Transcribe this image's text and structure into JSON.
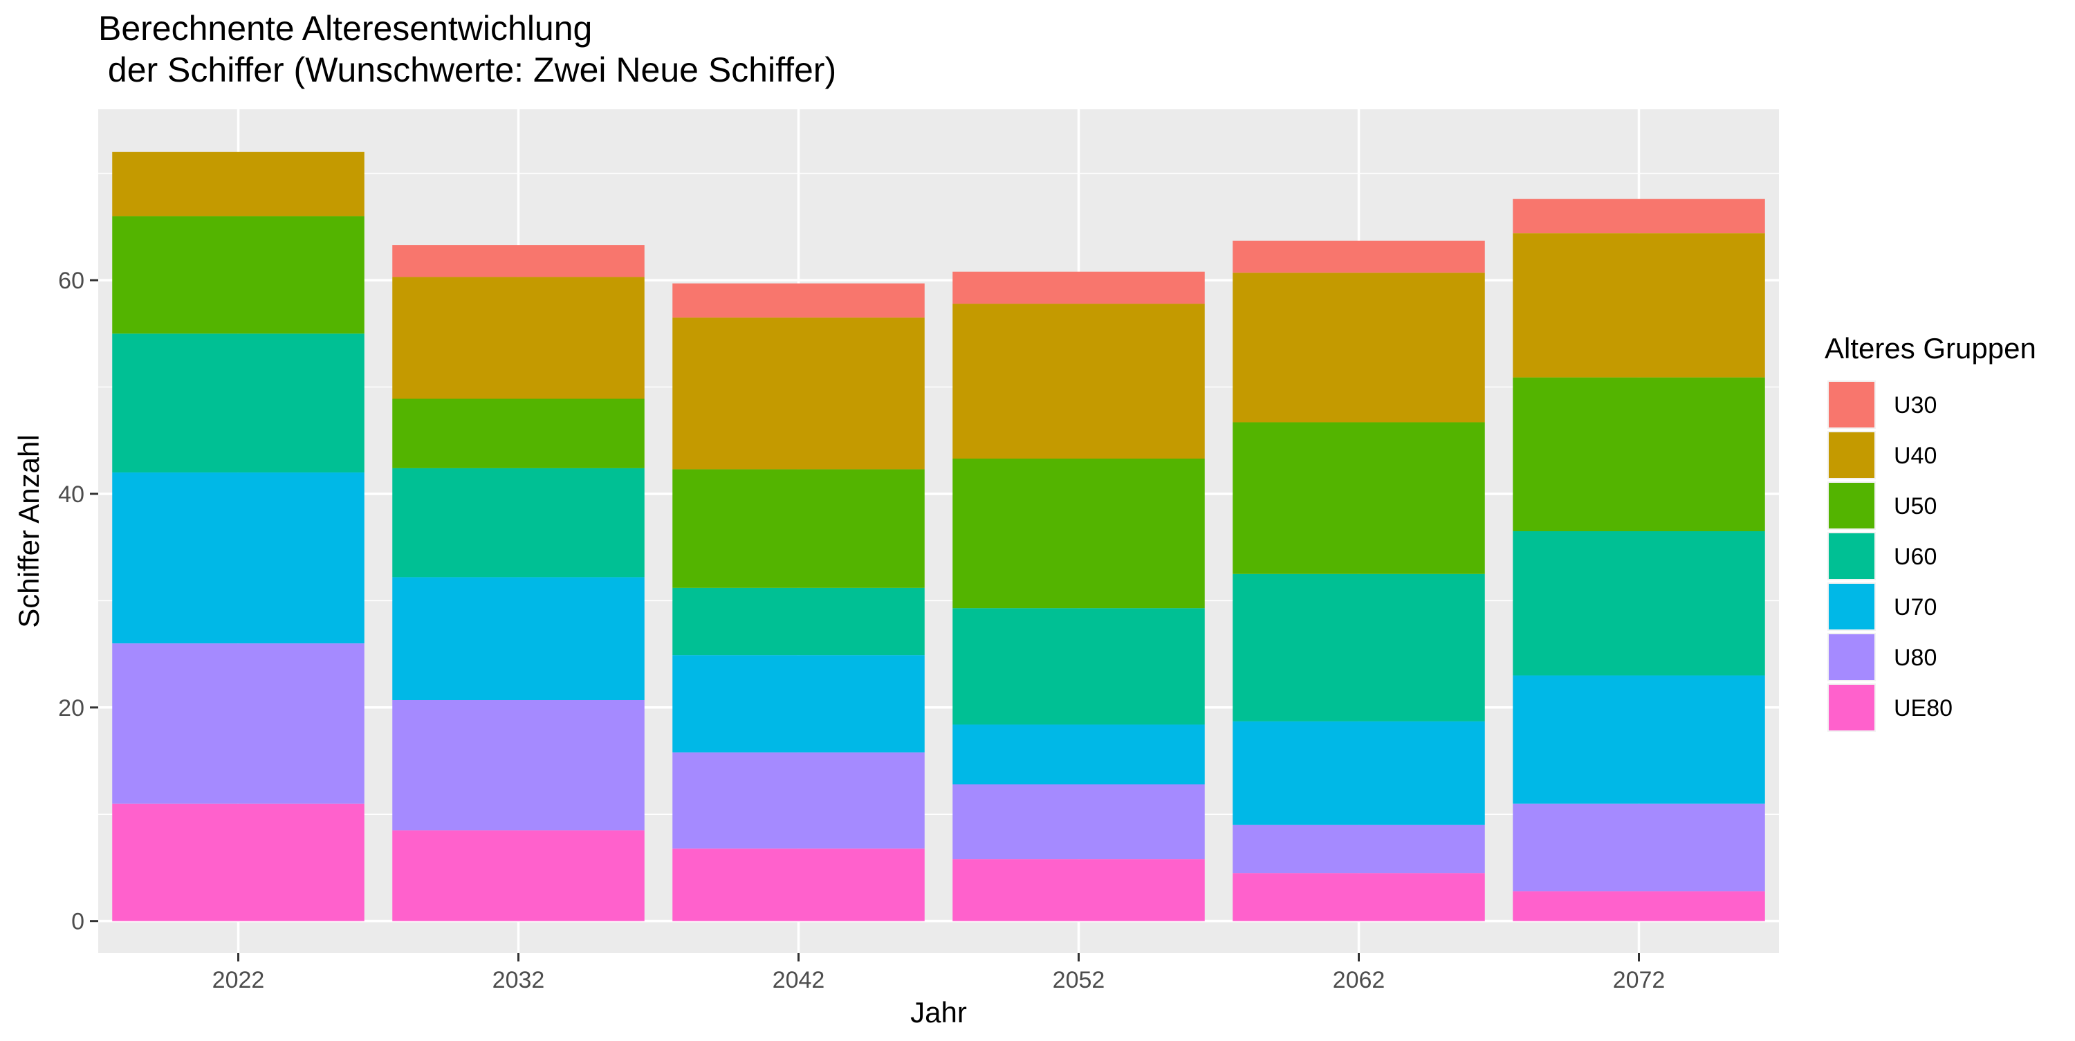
{
  "chart_data": {
    "type": "bar",
    "stacked": true,
    "title_line1": "Berechnente Alteresentwichlung",
    "title_line2": " der Schiffer (Wunschwerte: Zwei Neue Schiffer)",
    "xlabel": "Jahr",
    "ylabel": "Schiffer Anzahl",
    "ylim": [
      -3,
      76
    ],
    "yticks": [
      0,
      20,
      40,
      60
    ],
    "grid": true,
    "legend_title": "Alteres Gruppen",
    "legend_position": "right",
    "categories": [
      "2022",
      "2032",
      "2042",
      "2052",
      "2062",
      "2072"
    ],
    "series": [
      {
        "name": "UE80",
        "color": "#FF61CC",
        "values": [
          11,
          8.5,
          6.8,
          5.8,
          4.5,
          2.8
        ]
      },
      {
        "name": "U80",
        "color": "#A58AFF",
        "values": [
          15,
          12.2,
          9,
          7,
          4.5,
          8.2
        ]
      },
      {
        "name": "U70",
        "color": "#00B8E7",
        "values": [
          16,
          11.5,
          9.1,
          5.6,
          9.7,
          12
        ]
      },
      {
        "name": "U60",
        "color": "#00C094",
        "values": [
          13,
          10.2,
          6.3,
          10.9,
          13.8,
          13.5
        ]
      },
      {
        "name": "U50",
        "color": "#53B400",
        "values": [
          11,
          6.5,
          11.1,
          14,
          14.2,
          14.4
        ]
      },
      {
        "name": "U40",
        "color": "#C49A00",
        "values": [
          6,
          11.4,
          14.2,
          14.5,
          14,
          13.5
        ]
      },
      {
        "name": "U30",
        "color": "#F8766D",
        "values": [
          0,
          3,
          3.2,
          3,
          3,
          3.2
        ]
      }
    ],
    "legend_order": [
      "U30",
      "U40",
      "U50",
      "U60",
      "U70",
      "U80",
      "UE80"
    ]
  }
}
